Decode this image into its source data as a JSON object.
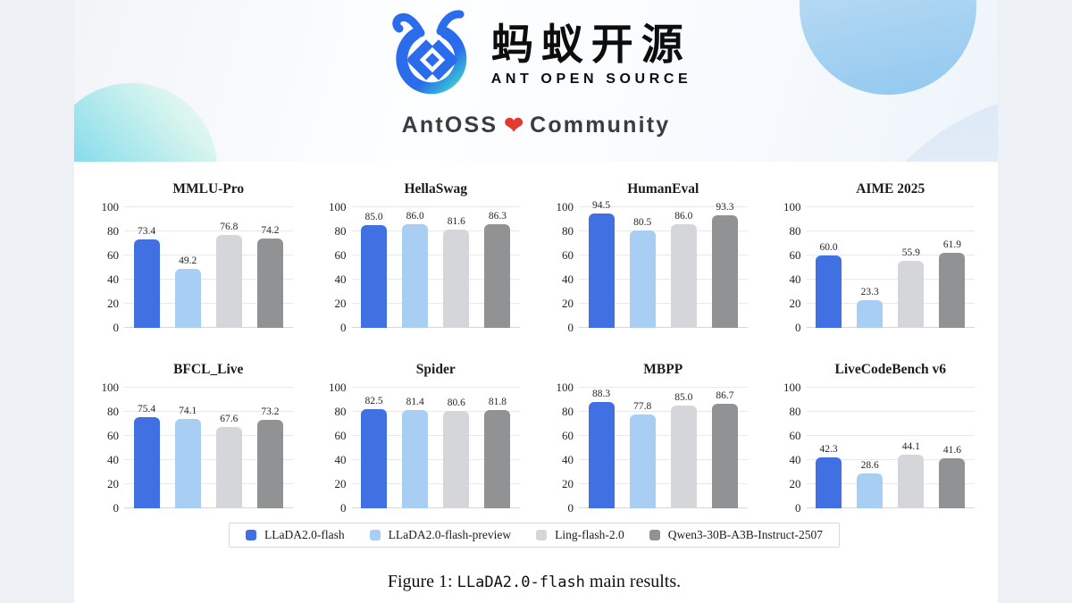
{
  "header": {
    "logo": {
      "brand_cn": "蚂蚁开源",
      "brand_en": "ANT OPEN SOURCE"
    },
    "tagline": {
      "left": "AntOSS",
      "heart": "❤",
      "right": "Community"
    }
  },
  "colors": {
    "series": [
      "#4170e2",
      "#a9cef3",
      "#d4d6d9",
      "#919294"
    ],
    "logo_blue": "#2a6ceb",
    "logo_teal": "#7fd9ad",
    "heart_red": "#e23a2e"
  },
  "chart_data": {
    "type": "bar",
    "series_names": [
      "LLaDA2.0-flash",
      "LLaDA2.0-flash-preview",
      "Ling-flash-2.0",
      "Qwen3-30B-A3B-Instruct-2507"
    ],
    "ylim": [
      0,
      100
    ],
    "yticks": [
      0,
      20,
      40,
      60,
      80,
      100
    ],
    "grid": true,
    "legend_position": "bottom",
    "subplots": [
      {
        "title": "MMLU-Pro",
        "values": [
          "73.4",
          "49.2",
          "76.8",
          "74.2"
        ]
      },
      {
        "title": "HellaSwag",
        "values": [
          "85.0",
          "86.0",
          "81.6",
          "86.3"
        ]
      },
      {
        "title": "HumanEval",
        "values": [
          "94.5",
          "80.5",
          "86.0",
          "93.3"
        ]
      },
      {
        "title": "AIME 2025",
        "values": [
          "60.0",
          "23.3",
          "55.9",
          "61.9"
        ]
      },
      {
        "title": "BFCL_Live",
        "values": [
          "75.4",
          "74.1",
          "67.6",
          "73.2"
        ]
      },
      {
        "title": "Spider",
        "values": [
          "82.5",
          "81.4",
          "80.6",
          "81.8"
        ]
      },
      {
        "title": "MBPP",
        "values": [
          "88.3",
          "77.8",
          "85.0",
          "86.7"
        ]
      },
      {
        "title": "LiveCodeBench v6",
        "values": [
          "42.3",
          "28.6",
          "44.1",
          "41.6"
        ]
      }
    ]
  },
  "legend": {
    "items": [
      {
        "label": "LLaDA2.0-flash",
        "color": "#4170e2"
      },
      {
        "label": "LLaDA2.0-flash-preview",
        "color": "#a9cef3"
      },
      {
        "label": "Ling-flash-2.0",
        "color": "#d4d6d9"
      },
      {
        "label": "Qwen3-30B-A3B-Instruct-2507",
        "color": "#919294"
      }
    ]
  },
  "caption": {
    "prefix": "Figure 1: ",
    "model": "LLaDA2.0-flash",
    "suffix": " main results."
  }
}
